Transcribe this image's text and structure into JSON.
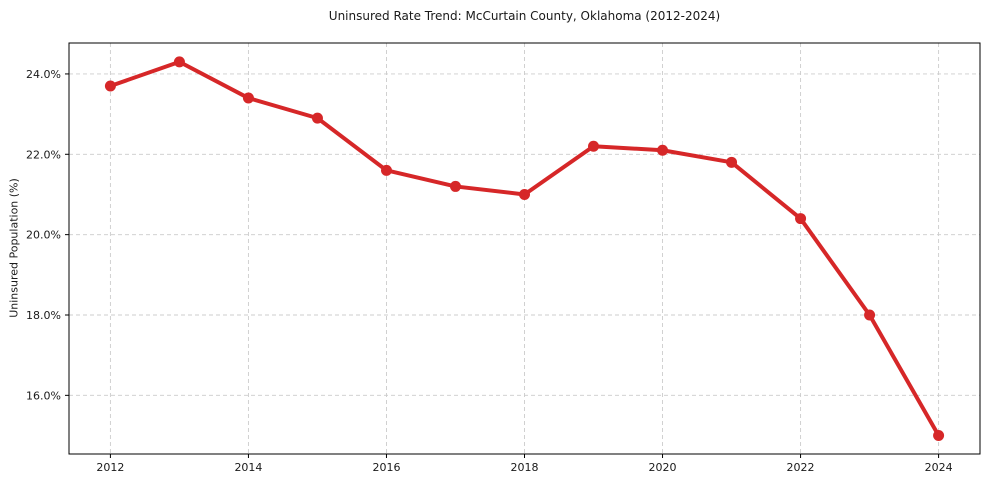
{
  "chart_data": {
    "type": "line",
    "title": "Uninsured Rate Trend: McCurtain County, Oklahoma (2012-2024)",
    "xlabel": "",
    "ylabel": "Uninsured Population (%)",
    "x": [
      2012,
      2013,
      2014,
      2015,
      2016,
      2017,
      2018,
      2019,
      2020,
      2021,
      2022,
      2023,
      2024
    ],
    "values": [
      23.7,
      24.3,
      23.4,
      22.9,
      21.6,
      21.2,
      21.0,
      22.2,
      22.1,
      21.8,
      20.4,
      18.0,
      15.0
    ],
    "unit": "%",
    "xlim": [
      2011.4,
      2024.6
    ],
    "ylim": [
      14.54,
      24.77
    ],
    "xticks": [
      2012,
      2014,
      2016,
      2018,
      2020,
      2022,
      2024
    ],
    "xtick_labels": [
      "2012",
      "2014",
      "2016",
      "2018",
      "2020",
      "2022",
      "2024"
    ],
    "yticks": [
      16,
      18,
      20,
      22,
      24
    ],
    "ytick_labels": [
      "16.0%",
      "18.0%",
      "20.0%",
      "22.0%",
      "24.0%"
    ],
    "grid": true,
    "grid_style": "dashed",
    "grid_color": "#cccccc",
    "line_color": "#d62728",
    "marker": "circle",
    "marker_color": "#d62728",
    "legend_position": "none",
    "background_color": "#ffffff",
    "spine_color": "#000000"
  }
}
